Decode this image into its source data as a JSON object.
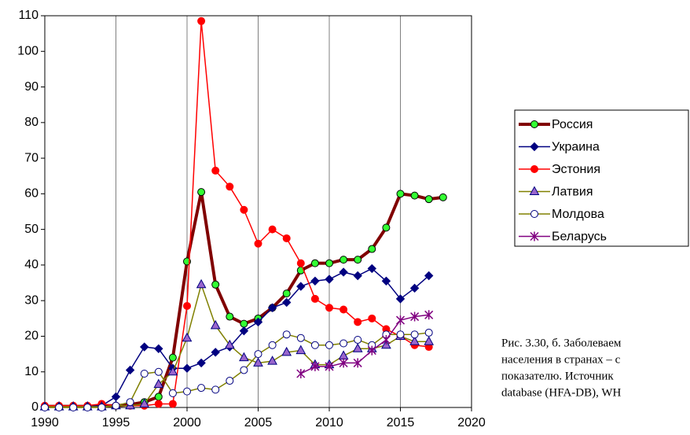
{
  "chart_data": {
    "type": "line",
    "x": [
      1990,
      1991,
      1992,
      1993,
      1994,
      1995,
      1996,
      1997,
      1998,
      1999,
      2000,
      2001,
      2002,
      2003,
      2004,
      2005,
      2006,
      2007,
      2008,
      2009,
      2010,
      2011,
      2012,
      2013,
      2014,
      2015,
      2016,
      2017,
      2018
    ],
    "xlim": [
      1990,
      2020
    ],
    "xticks": [
      1990,
      1995,
      2000,
      2005,
      2010,
      2015,
      2020
    ],
    "ylim": [
      0,
      110
    ],
    "yticks": [
      0,
      10,
      20,
      30,
      40,
      50,
      60,
      70,
      80,
      90,
      100,
      110
    ],
    "grid": "x",
    "series": [
      {
        "name": "Россия",
        "color": "#800000",
        "line_width": 4,
        "marker": "circle",
        "marker_fill": "#33ff33",
        "marker_stroke": "#000000",
        "values": [
          0.3,
          0.3,
          0.3,
          0.3,
          0.5,
          0.5,
          0.8,
          1.5,
          3,
          14,
          41,
          60.5,
          34.5,
          25.5,
          23.5,
          25,
          28,
          32,
          38.5,
          40.5,
          40.5,
          41.5,
          41.5,
          44.5,
          50.5,
          60,
          59.5,
          58.5,
          59
        ]
      },
      {
        "name": "Украина",
        "color": "#000080",
        "line_width": 1.5,
        "marker": "diamond",
        "marker_fill": "#000080",
        "marker_stroke": "#000080",
        "values": [
          0.2,
          0.2,
          0.2,
          0.3,
          0.5,
          3,
          10.5,
          17,
          16.5,
          11,
          11,
          12.5,
          15.5,
          17,
          21.5,
          24,
          28,
          29.5,
          34,
          35.5,
          36,
          38,
          37,
          39,
          35.5,
          30.5,
          33.5,
          37,
          null
        ]
      },
      {
        "name": "Эстония",
        "color": "#ff0000",
        "line_width": 1.5,
        "marker": "circle",
        "marker_fill": "#ff0000",
        "marker_stroke": "#ff0000",
        "values": [
          0.5,
          0.5,
          0.5,
          0.5,
          1,
          0.5,
          0.5,
          0.5,
          1,
          1,
          28.5,
          108.5,
          66.5,
          62,
          55.5,
          46,
          50,
          47.5,
          40.5,
          30.5,
          28,
          27.5,
          24,
          25,
          22,
          20,
          17.5,
          17,
          null
        ]
      },
      {
        "name": "Латвия",
        "color": "#808000",
        "line_width": 1.5,
        "marker": "triangle",
        "marker_fill": "#9966cc",
        "marker_stroke": "#000080",
        "values": [
          0.2,
          0.2,
          0.2,
          0.2,
          0.2,
          0.5,
          0.5,
          1,
          6.5,
          10,
          19.5,
          34.5,
          23,
          17.5,
          14,
          12.5,
          13,
          15.5,
          16,
          12,
          12,
          14.5,
          16.5,
          16.5,
          17.5,
          20,
          18.5,
          18.5,
          null
        ]
      },
      {
        "name": "Молдова",
        "color": "#808000",
        "line_width": 1.5,
        "marker": "circle",
        "marker_fill": "#ffffff",
        "marker_stroke": "#000080",
        "values": [
          0,
          0,
          0,
          0,
          0,
          0.5,
          1.5,
          9.5,
          10,
          4,
          4.5,
          5.5,
          5,
          7.5,
          10.5,
          15,
          17.5,
          20.5,
          19.5,
          17.5,
          17.5,
          18,
          19,
          17.5,
          20.5,
          20.5,
          20.5,
          21,
          null
        ]
      },
      {
        "name": "Беларусь",
        "color": "#800080",
        "line_width": 1.5,
        "marker": "asterisk",
        "marker_fill": "#800080",
        "marker_stroke": "#800080",
        "values": [
          null,
          null,
          null,
          null,
          null,
          null,
          null,
          null,
          null,
          null,
          null,
          null,
          null,
          null,
          null,
          null,
          null,
          null,
          9.5,
          11.5,
          11.5,
          12.5,
          12.5,
          16,
          19,
          24.5,
          25.5,
          26,
          null
        ]
      }
    ],
    "caption": [
      "Рис. 3.30, б. Заболеваем",
      "населения в странах – с",
      "показателю.  Источник",
      "database (HFA-DB), WH"
    ]
  }
}
